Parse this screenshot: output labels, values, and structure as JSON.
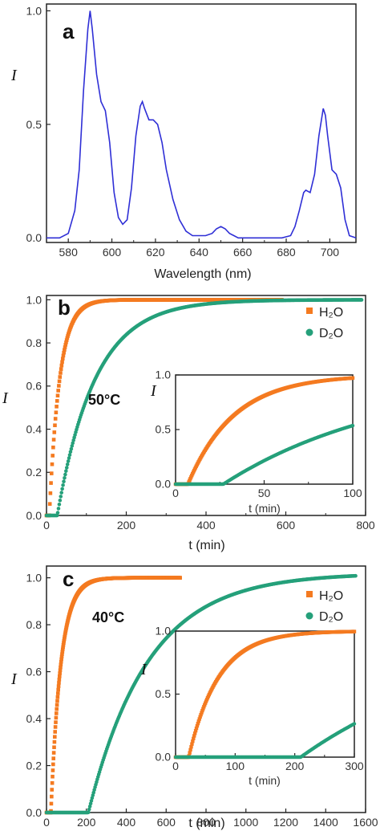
{
  "chart_data": [
    {
      "panel": "a",
      "type": "line",
      "xlabel": "Wavelength (nm)",
      "ylabel": "I",
      "xlim": [
        570,
        712
      ],
      "ylim": [
        -0.02,
        1.03
      ],
      "xticks": [
        580,
        600,
        620,
        640,
        660,
        680,
        700
      ],
      "yticks": [
        0.0,
        0.5,
        1.0
      ],
      "ytick_labels": [
        "0.0",
        "0.5",
        "1.0"
      ],
      "color": "#2f2fd6",
      "series": [
        {
          "x": [
            570,
            576,
            580,
            583,
            585,
            587,
            589,
            590,
            591,
            593,
            595,
            597,
            599,
            601,
            603,
            605,
            607,
            609,
            611,
            613,
            614,
            615,
            617,
            619,
            621,
            623,
            625,
            628,
            631,
            634,
            637,
            640,
            643,
            646,
            648,
            650,
            652,
            654,
            656,
            658,
            662,
            670,
            678,
            682,
            684,
            686,
            688,
            689,
            691,
            693,
            695,
            697,
            698,
            699,
            701,
            703,
            705,
            707,
            709,
            712
          ],
          "y": [
            0.0,
            0.0,
            0.02,
            0.12,
            0.3,
            0.65,
            0.92,
            1.0,
            0.92,
            0.72,
            0.6,
            0.56,
            0.42,
            0.2,
            0.09,
            0.06,
            0.08,
            0.22,
            0.45,
            0.58,
            0.6,
            0.57,
            0.52,
            0.52,
            0.5,
            0.42,
            0.3,
            0.17,
            0.08,
            0.03,
            0.01,
            0.01,
            0.01,
            0.02,
            0.04,
            0.05,
            0.04,
            0.02,
            0.01,
            0.0,
            0.0,
            0.0,
            0.0,
            0.01,
            0.05,
            0.12,
            0.2,
            0.21,
            0.2,
            0.28,
            0.45,
            0.57,
            0.54,
            0.45,
            0.3,
            0.28,
            0.22,
            0.08,
            0.01,
            0.0
          ]
        }
      ]
    },
    {
      "panel": "b",
      "type": "scatter",
      "annotation": "50°C",
      "xlabel": "t (min)",
      "ylabel": "I",
      "xlim": [
        0,
        800
      ],
      "ylim": [
        0,
        1.02
      ],
      "xticks": [
        0,
        200,
        400,
        600,
        800
      ],
      "yticks": [
        0.0,
        0.2,
        0.4,
        0.6,
        0.8,
        1.0
      ],
      "ytick_labels": [
        "0.0",
        "0.2",
        "0.4",
        "0.6",
        "0.8",
        "1.0"
      ],
      "legend": [
        "H₂O",
        "D₂O"
      ],
      "series": [
        {
          "name": "H2O",
          "color": "#f47a20",
          "t0": 7,
          "tau": 26,
          "sat": 1.0,
          "tmax": 590
        },
        {
          "name": "D2O",
          "color": "#25a07a",
          "t0": 27,
          "tau": 95,
          "sat": 1.0,
          "tmax": 790
        }
      ],
      "inset": {
        "xlim": [
          0,
          100
        ],
        "ylim": [
          0,
          1.0
        ],
        "xticks": [
          0,
          50,
          100
        ],
        "yticks": [
          0.0,
          0.5,
          1.0
        ],
        "ytick_labels": [
          "0.0",
          "0.5",
          "1.0"
        ],
        "xlabel": "t (min)",
        "ylabel": "I",
        "series": [
          {
            "name": "H2O",
            "color": "#f47a20",
            "t0": 7,
            "tau": 26,
            "sat": 1.0,
            "tmax": 100
          },
          {
            "name": "D2O",
            "color": "#25a07a",
            "t0": 27,
            "tau": 95,
            "sat": 1.0,
            "tmax": 100
          }
        ]
      }
    },
    {
      "panel": "c",
      "type": "scatter",
      "annotation": "40°C",
      "xlabel": "t (min)",
      "ylabel": "I",
      "xlim": [
        0,
        1600
      ],
      "ylim": [
        0,
        1.05
      ],
      "xticks": [
        0,
        200,
        400,
        600,
        800,
        1000,
        1200,
        1400,
        1600
      ],
      "yticks": [
        0.0,
        0.2,
        0.4,
        0.6,
        0.8,
        1.0
      ],
      "ytick_labels": [
        "0.0",
        "0.2",
        "0.4",
        "0.6",
        "0.8",
        "1.0"
      ],
      "legend": [
        "H₂O",
        "D₂O"
      ],
      "series": [
        {
          "name": "H2O",
          "color": "#f47a20",
          "t0": 22,
          "tau": 50,
          "sat": 1.0,
          "tmax": 670
        },
        {
          "name": "D2O",
          "color": "#25a07a",
          "t0": 210,
          "tau": 300,
          "sat": 1.02,
          "tmax": 1550
        }
      ],
      "inset": {
        "xlim": [
          0,
          300
        ],
        "ylim": [
          0,
          1.0
        ],
        "xticks": [
          0,
          100,
          200,
          300
        ],
        "yticks": [
          0.0,
          0.5,
          1.0
        ],
        "ytick_labels": [
          "0.0",
          "0.5",
          "1.0"
        ],
        "xlabel": "t (min)",
        "ylabel": "I",
        "series": [
          {
            "name": "H2O",
            "color": "#f47a20",
            "t0": 22,
            "tau": 50,
            "sat": 1.0,
            "tmax": 300
          },
          {
            "name": "D2O",
            "color": "#25a07a",
            "t0": 210,
            "tau": 300,
            "sat": 1.02,
            "tmax": 300
          }
        ]
      }
    }
  ]
}
